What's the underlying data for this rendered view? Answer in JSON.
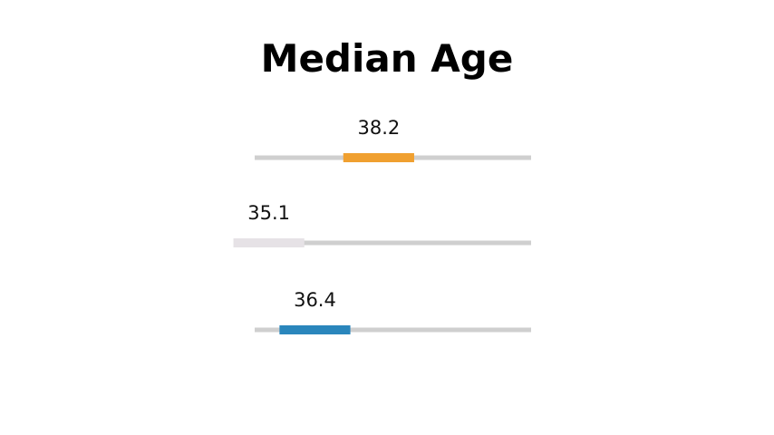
{
  "chart_data": {
    "type": "bar",
    "title": "Median Age",
    "xlabel": "",
    "ylabel": "",
    "xlim": [
      34.7,
      42.5
    ],
    "grid": false,
    "legend": "none",
    "marker_span": 2.0,
    "series": [
      {
        "value": 38.2,
        "label": "38.2",
        "color": "#f0a030"
      },
      {
        "value": 35.1,
        "label": "35.1",
        "color": "#e6e2e6"
      },
      {
        "value": 36.4,
        "label": "36.4",
        "color": "#2a86bc"
      }
    ],
    "track_color": "#cfcfcf"
  }
}
